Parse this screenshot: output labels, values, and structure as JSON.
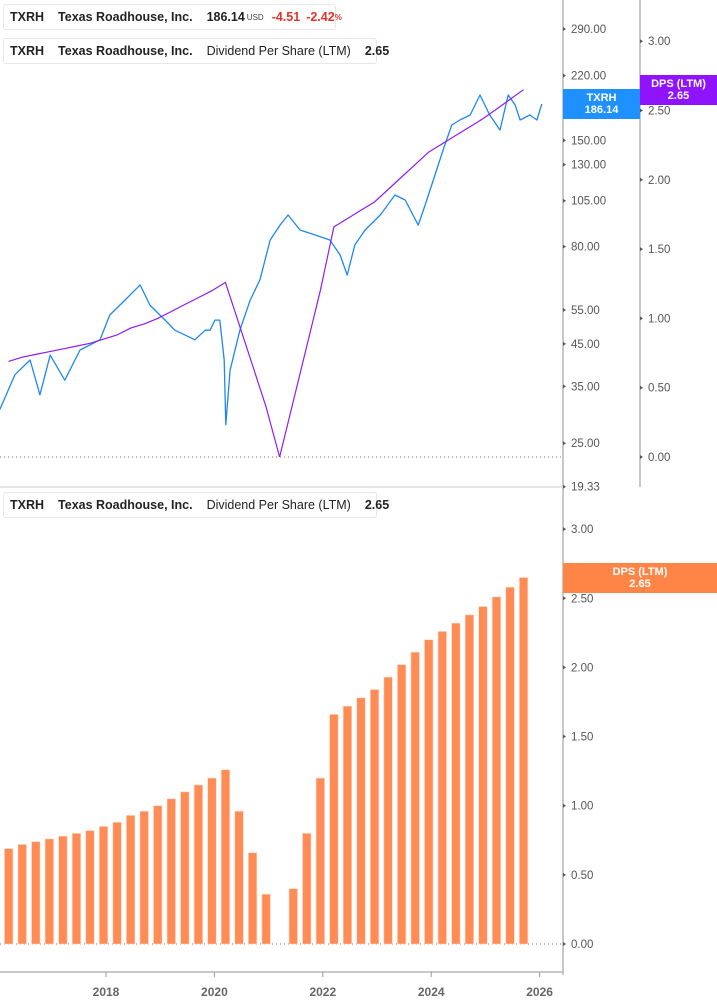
{
  "colors": {
    "price": "#1e88f0",
    "dps_line": "#8f1cf5",
    "dps_bar": "#ff8c55",
    "negative": "#e0352b"
  },
  "legend_price": {
    "ticker": "TXRH",
    "name": "Texas Roadhouse, Inc.",
    "price": "186.14",
    "currency": "USD",
    "change": "-4.51",
    "change_pct": "-2.42",
    "pct_sign": "%"
  },
  "legend_dps_top": {
    "ticker": "TXRH",
    "name": "Texas Roadhouse, Inc.",
    "metric": "Dividend Per Share (LTM)",
    "value": "2.65"
  },
  "legend_dps_bottom": {
    "ticker": "TXRH",
    "name": "Texas Roadhouse, Inc.",
    "metric": "Dividend Per Share (LTM)",
    "value": "2.65"
  },
  "tags": {
    "price": {
      "label": "TXRH",
      "value": "186.14"
    },
    "dps_top": {
      "label": "DPS (LTM)",
      "value": "2.65"
    },
    "dps_bottom": {
      "label": "DPS (LTM)",
      "value": "2.65"
    }
  },
  "chart_data": [
    {
      "type": "line",
      "scale": "log",
      "series": [
        {
          "name": "TXRH",
          "axis": "price",
          "x": [
            2016.04,
            2016.32,
            2016.6,
            2016.78,
            2016.97,
            2017.24,
            2017.52,
            2017.89,
            2018.07,
            2018.35,
            2018.63,
            2018.81,
            2019.09,
            2019.27,
            2019.46,
            2019.64,
            2019.83,
            2019.92,
            2020.01,
            2020.1,
            2020.18,
            2020.21,
            2020.29,
            2020.47,
            2020.66,
            2020.84,
            2021.03,
            2021.21,
            2021.36,
            2021.58,
            2021.86,
            2022.13,
            2022.32,
            2022.45,
            2022.59,
            2022.78,
            2023.06,
            2023.33,
            2023.52,
            2023.76,
            2023.89,
            2024.01,
            2024.13,
            2024.25,
            2024.38,
            2024.53,
            2024.72,
            2024.9,
            2025.08,
            2025.27,
            2025.42,
            2025.55,
            2025.64,
            2025.82,
            2025.95,
            2026.04
          ],
          "y": [
            30.5,
            37.5,
            40.9,
            33.3,
            42.1,
            36.3,
            43.4,
            46.1,
            53.4,
            58.3,
            63.8,
            56.6,
            51.8,
            48.8,
            47.4,
            46.1,
            48.8,
            48.8,
            51.8,
            51.8,
            40.9,
            27.9,
            38.5,
            48.8,
            58.3,
            65.7,
            83.2,
            90.9,
            96.5,
            88.3,
            85.7,
            83.2,
            76.2,
            67.6,
            80.8,
            88.3,
            96.5,
            108.6,
            105.4,
            90.9,
            102.4,
            115.2,
            129.7,
            146.0,
            164.3,
            169.3,
            174.3,
            196.2,
            174.3,
            159.5,
            196.2,
            184.9,
            169.3,
            174.3,
            169.3,
            186.14
          ]
        },
        {
          "name": "Dividend Per Share (LTM)",
          "axis": "dps",
          "ref": "dps_quarterly"
        }
      ],
      "price_axis": {
        "ticks": [
          "290.00",
          "220.00",
          "150.00",
          "130.00",
          "105.00",
          "80.00",
          "55.00",
          "45.00",
          "35.00",
          "25.00",
          "19.33"
        ],
        "range": [
          19.33,
          320
        ]
      },
      "dps_axis": {
        "ticks": [
          "3.00",
          "2.50",
          "2.00",
          "1.50",
          "1.00",
          "0.50",
          "0.00"
        ],
        "range": [
          -0.22,
          3.3
        ]
      }
    },
    {
      "type": "bar",
      "id": "dps_quarterly",
      "x": [
        2016.25,
        2016.5,
        2016.75,
        2017.0,
        2017.25,
        2017.5,
        2017.75,
        2018.0,
        2018.25,
        2018.5,
        2018.75,
        2019.0,
        2019.25,
        2019.5,
        2019.75,
        2020.0,
        2020.25,
        2020.5,
        2020.75,
        2021.0,
        2021.25,
        2021.5,
        2021.75,
        2022.0,
        2022.25,
        2022.5,
        2022.75,
        2023.0,
        2023.25,
        2023.5,
        2023.75,
        2024.0,
        2024.25,
        2024.5,
        2024.75,
        2025.0,
        2025.25,
        2025.5,
        2025.75
      ],
      "values": [
        0.69,
        0.72,
        0.74,
        0.76,
        0.78,
        0.8,
        0.82,
        0.85,
        0.88,
        0.93,
        0.96,
        1.0,
        1.05,
        1.1,
        1.15,
        1.2,
        1.26,
        0.96,
        0.66,
        0.36,
        0.0,
        0.4,
        0.8,
        1.2,
        1.66,
        1.72,
        1.78,
        1.84,
        1.93,
        2.02,
        2.11,
        2.2,
        2.26,
        2.32,
        2.38,
        2.44,
        2.51,
        2.58,
        2.65
      ],
      "y_ticks": [
        "3.00",
        "2.50",
        "2.00",
        "1.50",
        "1.00",
        "0.50",
        "0.00"
      ],
      "ylim": [
        -0.18,
        3.1
      ]
    }
  ],
  "x_axis": {
    "ticks": [
      "2018",
      "2020",
      "2022",
      "2024",
      "2026"
    ],
    "range": [
      2016.04,
      2026.2
    ]
  }
}
